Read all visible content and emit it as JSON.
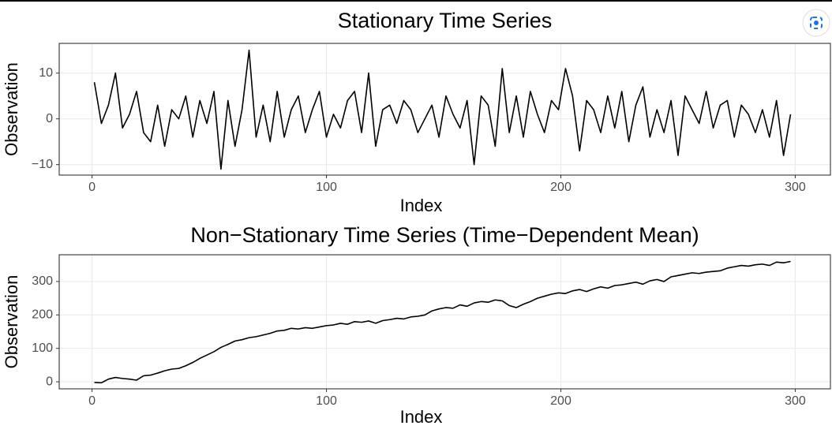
{
  "chart_data": [
    {
      "type": "line",
      "title": "Stationary Time Series",
      "xlabel": "Index",
      "ylabel": "Observation",
      "color": "#000000",
      "grid": true,
      "x": [
        1,
        4,
        7,
        10,
        13,
        16,
        19,
        22,
        25,
        28,
        31,
        34,
        37,
        40,
        43,
        46,
        49,
        52,
        55,
        58,
        61,
        64,
        67,
        70,
        73,
        76,
        79,
        82,
        85,
        88,
        91,
        94,
        97,
        100,
        103,
        106,
        109,
        112,
        115,
        118,
        121,
        124,
        127,
        130,
        133,
        136,
        139,
        142,
        145,
        148,
        151,
        154,
        157,
        160,
        163,
        166,
        169,
        172,
        175,
        178,
        181,
        184,
        187,
        190,
        193,
        196,
        199,
        202,
        205,
        208,
        211,
        214,
        217,
        220,
        223,
        226,
        229,
        232,
        235,
        238,
        241,
        244,
        247,
        250,
        253,
        256,
        259,
        262,
        265,
        268,
        271,
        274,
        277,
        280,
        283,
        286,
        289,
        292,
        295,
        298
      ],
      "values": [
        8,
        -1,
        3,
        10,
        -2,
        1,
        6,
        -3,
        -5,
        3,
        -6,
        2,
        0,
        5,
        -4,
        4,
        -1,
        6,
        -11,
        4,
        -6,
        2,
        15,
        -4,
        3,
        -5,
        6,
        -4,
        2,
        5,
        -3,
        2,
        6,
        -4,
        1,
        -2,
        4,
        6,
        -3,
        10,
        -6,
        2,
        3,
        -1,
        4,
        2,
        -3,
        0,
        3,
        -4,
        5,
        1,
        -2,
        4,
        -10,
        5,
        3,
        -6,
        11,
        -3,
        5,
        -4,
        6,
        1,
        -3,
        4,
        2,
        11,
        5,
        -7,
        4,
        2,
        -3,
        5,
        -2,
        6,
        -5,
        3,
        7,
        -4,
        2,
        -3,
        4,
        -8,
        5,
        2,
        -1,
        6,
        -2,
        3,
        4,
        -4,
        3,
        1,
        -3,
        2,
        -4,
        4,
        -8,
        1
      ],
      "xlim": [
        -14,
        315
      ],
      "xticks": [
        0,
        100,
        200,
        300
      ],
      "ylim": [
        -12.3,
        16.5
      ],
      "yticks": [
        {
          "value": -10,
          "label": "−10"
        },
        0,
        10
      ]
    },
    {
      "type": "line",
      "title": "Non−Stationary Time Series (Time−Dependent Mean)",
      "xlabel": "Index",
      "ylabel": "Observation",
      "color": "#000000",
      "grid": true,
      "x": [
        1,
        4,
        7,
        10,
        13,
        16,
        19,
        22,
        25,
        28,
        31,
        34,
        37,
        40,
        43,
        46,
        49,
        52,
        55,
        58,
        61,
        64,
        67,
        70,
        73,
        76,
        79,
        82,
        85,
        88,
        91,
        94,
        97,
        100,
        103,
        106,
        109,
        112,
        115,
        118,
        121,
        124,
        127,
        130,
        133,
        136,
        139,
        142,
        145,
        148,
        151,
        154,
        157,
        160,
        163,
        166,
        169,
        172,
        175,
        178,
        181,
        184,
        187,
        190,
        193,
        196,
        199,
        202,
        205,
        208,
        211,
        214,
        217,
        220,
        223,
        226,
        229,
        232,
        235,
        238,
        241,
        244,
        247,
        250,
        253,
        256,
        259,
        262,
        265,
        268,
        271,
        274,
        277,
        280,
        283,
        286,
        289,
        292,
        295,
        298
      ],
      "values": [
        -2,
        -3,
        8,
        13,
        10,
        8,
        5,
        18,
        20,
        26,
        33,
        38,
        40,
        48,
        58,
        70,
        80,
        90,
        103,
        112,
        122,
        126,
        132,
        135,
        140,
        145,
        152,
        154,
        160,
        158,
        162,
        160,
        164,
        168,
        170,
        175,
        172,
        180,
        178,
        182,
        175,
        183,
        186,
        190,
        188,
        194,
        196,
        200,
        212,
        218,
        222,
        220,
        230,
        226,
        236,
        240,
        238,
        245,
        242,
        228,
        222,
        232,
        240,
        250,
        256,
        262,
        266,
        264,
        272,
        276,
        270,
        278,
        284,
        280,
        288,
        290,
        294,
        298,
        292,
        302,
        306,
        300,
        314,
        318,
        322,
        326,
        324,
        328,
        330,
        332,
        340,
        344,
        348,
        346,
        350,
        352,
        348,
        358,
        356,
        360
      ],
      "xlim": [
        -14,
        315
      ],
      "xticks": [
        0,
        100,
        200,
        300
      ],
      "ylim": [
        -21,
        380
      ],
      "yticks": [
        0,
        100,
        200,
        300
      ]
    }
  ]
}
